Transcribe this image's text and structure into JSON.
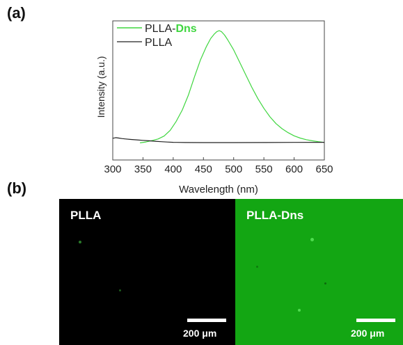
{
  "panels": {
    "a_label": "(a)",
    "b_label": "(b)"
  },
  "colors": {
    "plla_dns": "#3fd63f",
    "plla": "#222222",
    "axis": "#444444",
    "dns_text": "#3fd63f",
    "micro_dark": "#000000",
    "micro_green": "#13a613"
  },
  "chart_data": {
    "type": "line",
    "title": "",
    "xlabel": "Wavelength (nm)",
    "ylabel": "Intensity (a.u.)",
    "xlim": [
      300,
      650
    ],
    "ylim": [
      0,
      1.0
    ],
    "xticks": [
      300,
      350,
      400,
      450,
      500,
      550,
      600,
      650
    ],
    "xtick_labels": [
      "300",
      "350",
      "400",
      "450",
      "500",
      "550",
      "600",
      "650"
    ],
    "grid": false,
    "legend_position": "top-left",
    "series": [
      {
        "name": "PLLA-Dns",
        "name_prefix": "PLLA-",
        "name_suffix": "Dns",
        "color": "#3fd63f",
        "x": [
          345,
          355,
          365,
          375,
          385,
          395,
          405,
          415,
          425,
          435,
          445,
          455,
          462,
          468,
          472,
          476,
          480,
          485,
          490,
          500,
          510,
          520,
          530,
          540,
          550,
          560,
          570,
          580,
          590,
          600,
          610,
          620,
          630,
          640,
          650
        ],
        "y": [
          0.01,
          0.018,
          0.03,
          0.044,
          0.07,
          0.12,
          0.2,
          0.3,
          0.43,
          0.59,
          0.74,
          0.86,
          0.93,
          0.97,
          0.99,
          1.0,
          0.99,
          0.96,
          0.92,
          0.83,
          0.72,
          0.61,
          0.5,
          0.4,
          0.315,
          0.24,
          0.18,
          0.135,
          0.1,
          0.072,
          0.052,
          0.038,
          0.028,
          0.02,
          0.014
        ]
      },
      {
        "name": "PLLA",
        "color": "#222222",
        "x": [
          300,
          305,
          310,
          315,
          320,
          330,
          340,
          350,
          360,
          370,
          380,
          390,
          400,
          420,
          450,
          500,
          550,
          600,
          650
        ],
        "y": [
          0.05,
          0.056,
          0.052,
          0.048,
          0.045,
          0.04,
          0.036,
          0.032,
          0.028,
          0.024,
          0.02,
          0.017,
          0.015,
          0.013,
          0.012,
          0.012,
          0.013,
          0.014,
          0.015
        ]
      }
    ]
  },
  "micrographs": [
    {
      "label": "PLLA",
      "scale_text": "200 μm",
      "background": "#000000"
    },
    {
      "label": "PLLA-Dns",
      "scale_text": "200 μm",
      "background": "#13a613"
    }
  ]
}
